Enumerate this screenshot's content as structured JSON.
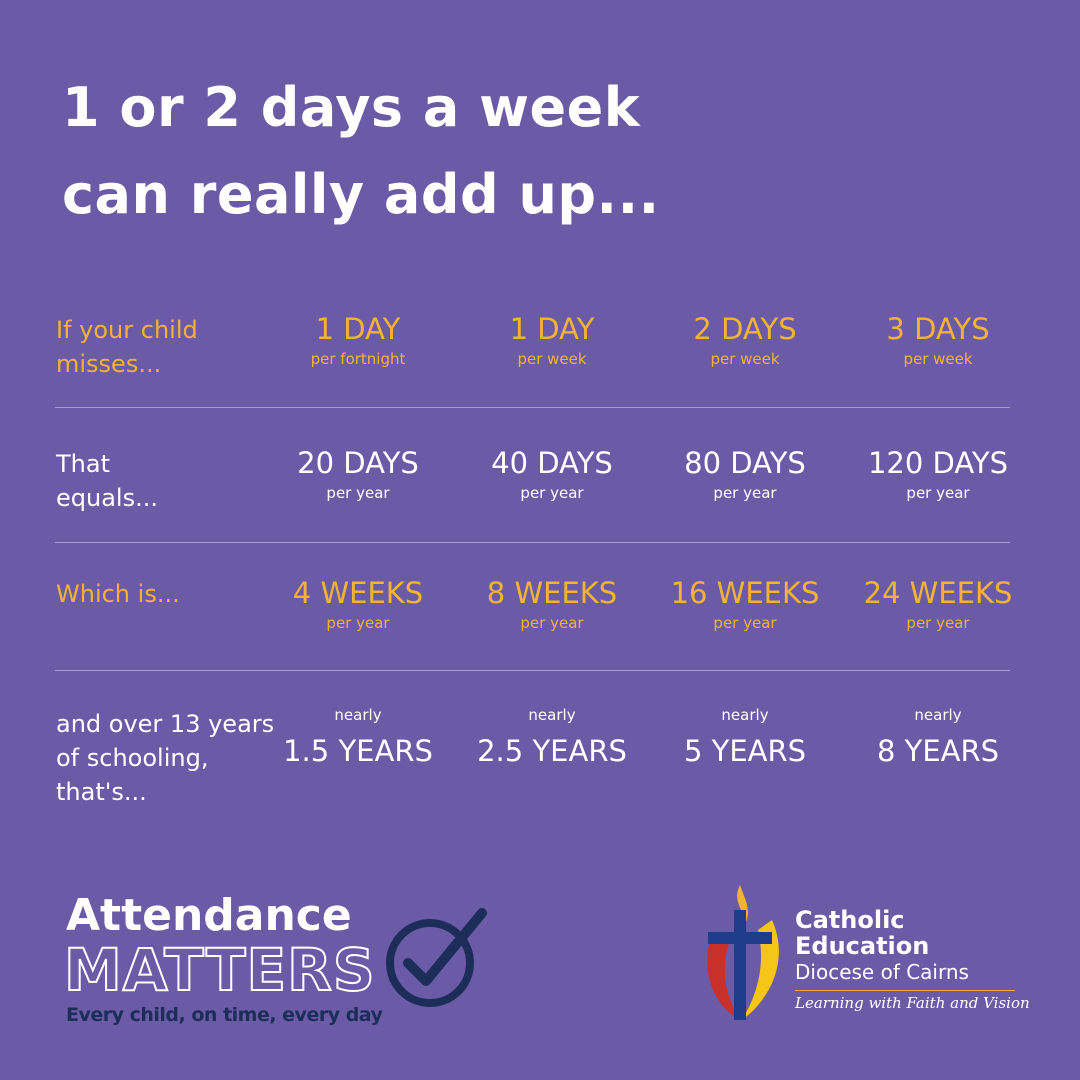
{
  "title": [
    "1 or 2 days a week",
    "can really add up..."
  ],
  "rows": [
    {
      "label": [
        "If your child",
        "misses..."
      ],
      "highlight": true,
      "cells": [
        {
          "main": "1 DAY",
          "sub": "per fortnight"
        },
        {
          "main": "1 DAY",
          "sub": "per week"
        },
        {
          "main": "2 DAYS",
          "sub": "per week"
        },
        {
          "main": "3 DAYS",
          "sub": "per week"
        }
      ]
    },
    {
      "label": [
        "That",
        "equals..."
      ],
      "highlight": false,
      "cells": [
        {
          "main": "20 DAYS",
          "sub": "per year"
        },
        {
          "main": "40 DAYS",
          "sub": "per year"
        },
        {
          "main": "80 DAYS",
          "sub": "per year"
        },
        {
          "main": "120 DAYS",
          "sub": "per year"
        }
      ]
    },
    {
      "label": [
        "Which is..."
      ],
      "highlight": true,
      "cells": [
        {
          "main": "4 WEEKS",
          "sub": "per year"
        },
        {
          "main": "8 WEEKS",
          "sub": "per year"
        },
        {
          "main": "16 WEEKS",
          "sub": "per year"
        },
        {
          "main": "24 WEEKS",
          "sub": "per year"
        }
      ]
    },
    {
      "label": [
        "and over 13 years",
        "of schooling,",
        "that's..."
      ],
      "highlight": false,
      "cells": [
        {
          "pre": "nearly",
          "main": "1.5 YEARS"
        },
        {
          "pre": "nearly",
          "main": "2.5 YEARS"
        },
        {
          "pre": "nearly",
          "main": "5 YEARS"
        },
        {
          "pre": "nearly",
          "main": "8 YEARS"
        }
      ]
    }
  ],
  "attendance": {
    "line1": "Attendance",
    "line2": "MATTERS",
    "tagline": "Every child, on time, every day"
  },
  "catholic": {
    "line1": "Catholic",
    "line2": "Education",
    "line3": "Diocese of Cairns",
    "tagline": "Learning with Faith and Vision"
  }
}
